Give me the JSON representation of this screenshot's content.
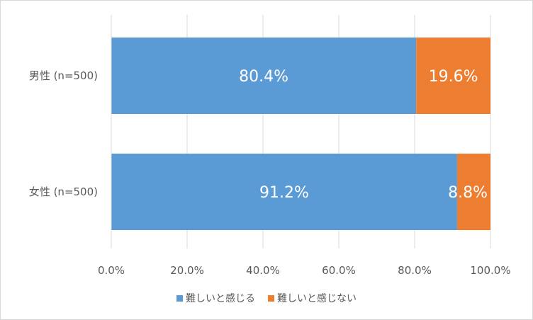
{
  "chart_data": {
    "type": "bar",
    "orientation": "horizontal",
    "stacked": true,
    "categories": [
      "男性 (n=500)",
      "女性 (n=500)"
    ],
    "series": [
      {
        "name": "難しいと感じる",
        "values": [
          80.4,
          91.2
        ],
        "labels": [
          "80.4%",
          "91.2%"
        ],
        "color": "#5b9bd5"
      },
      {
        "name": "難しいと感じない",
        "values": [
          19.6,
          8.8
        ],
        "labels": [
          "19.6%",
          "8.8%"
        ],
        "color": "#ed7d31"
      }
    ],
    "x_ticks": [
      "0.0%",
      "20.0%",
      "40.0%",
      "60.0%",
      "80.0%",
      "100.0%"
    ],
    "xlim": [
      0,
      100
    ],
    "grid": true,
    "legend_position": "bottom",
    "title": "",
    "xlabel": "",
    "ylabel": ""
  }
}
